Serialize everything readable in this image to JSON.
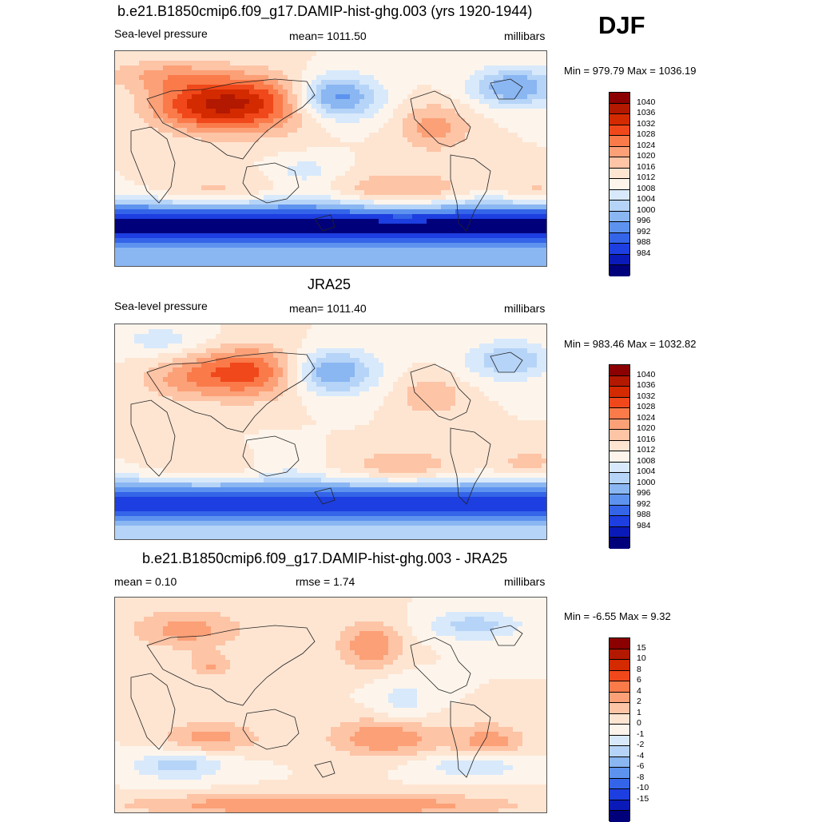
{
  "season": "DJF",
  "panels": [
    {
      "title": "b.e21.B1850cmip6.f09_g17.DAMIP-hist-ghg.003 (yrs 1920-1944)",
      "left_label": "Sea-level pressure",
      "center_label": "mean=  1011.50",
      "right_label": "millibars",
      "minmax": "Min = 979.79 Max = 1036.19",
      "colorbar": {
        "labels": [
          "1040",
          "1036",
          "1032",
          "1028",
          "1024",
          "1020",
          "1016",
          "1012",
          "1008",
          "1004",
          "1000",
          "996",
          "992",
          "988",
          "984"
        ],
        "colors": [
          "#8b0000",
          "#b31800",
          "#d42a00",
          "#f0481a",
          "#fa7a4a",
          "#fca077",
          "#fdc4a6",
          "#fee5d2",
          "#fdf5ec",
          "#d8e9fb",
          "#b6d4f7",
          "#8ab6f2",
          "#5d93ef",
          "#3464e8",
          "#1d3ee0",
          "#0a1ab8",
          "#00007a"
        ]
      },
      "field": "model"
    },
    {
      "title": "JRA25",
      "left_label": "Sea-level pressure",
      "center_label": "mean=  1011.40",
      "right_label": "millibars",
      "minmax": "Min = 983.46 Max = 1032.82",
      "colorbar": {
        "labels": [
          "1040",
          "1036",
          "1032",
          "1028",
          "1024",
          "1020",
          "1016",
          "1012",
          "1008",
          "1004",
          "1000",
          "996",
          "992",
          "988",
          "984"
        ],
        "colors": [
          "#8b0000",
          "#b31800",
          "#d42a00",
          "#f0481a",
          "#fa7a4a",
          "#fca077",
          "#fdc4a6",
          "#fee5d2",
          "#fdf5ec",
          "#d8e9fb",
          "#b6d4f7",
          "#8ab6f2",
          "#5d93ef",
          "#3464e8",
          "#1d3ee0",
          "#0a1ab8",
          "#00007a"
        ]
      },
      "field": "obs"
    },
    {
      "title": "b.e21.B1850cmip6.f09_g17.DAMIP-hist-ghg.003 - JRA25",
      "left_label": "mean =   0.10",
      "center_label": "rmse =   1.74",
      "right_label": "millibars",
      "minmax": "Min =  -6.55 Max =   9.32",
      "colorbar": {
        "labels": [
          "15",
          "10",
          "8",
          "6",
          "4",
          "2",
          "1",
          "0",
          "-1",
          "-2",
          "-4",
          "-6",
          "-8",
          "-10",
          "-15"
        ],
        "colors": [
          "#8b0000",
          "#b31800",
          "#d42a00",
          "#f0481a",
          "#fa7a4a",
          "#fca077",
          "#fdc4a6",
          "#fee5d2",
          "#fdf5ec",
          "#d8e9fb",
          "#b6d4f7",
          "#8ab6f2",
          "#5d93ef",
          "#3464e8",
          "#1d3ee0",
          "#0a1ab8",
          "#00007a"
        ]
      },
      "field": "diff"
    }
  ]
}
